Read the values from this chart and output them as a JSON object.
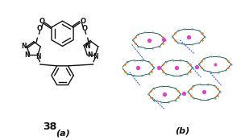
{
  "figure_width": 3.04,
  "figure_height": 1.74,
  "dpi": 100,
  "bg_color": "#ffffff",
  "label_38": "38",
  "label_a": "(a)",
  "label_b": "(b)",
  "label_fontsize": 8,
  "label_38_fontsize": 9,
  "structure_color": "#111111",
  "mol_color": "#555555",
  "pink_color": "#dd44cc",
  "orange_color": "#ff7700",
  "teal_color": "#33bbaa",
  "dark_color": "#333333",
  "dotted_color": "#4466dd"
}
